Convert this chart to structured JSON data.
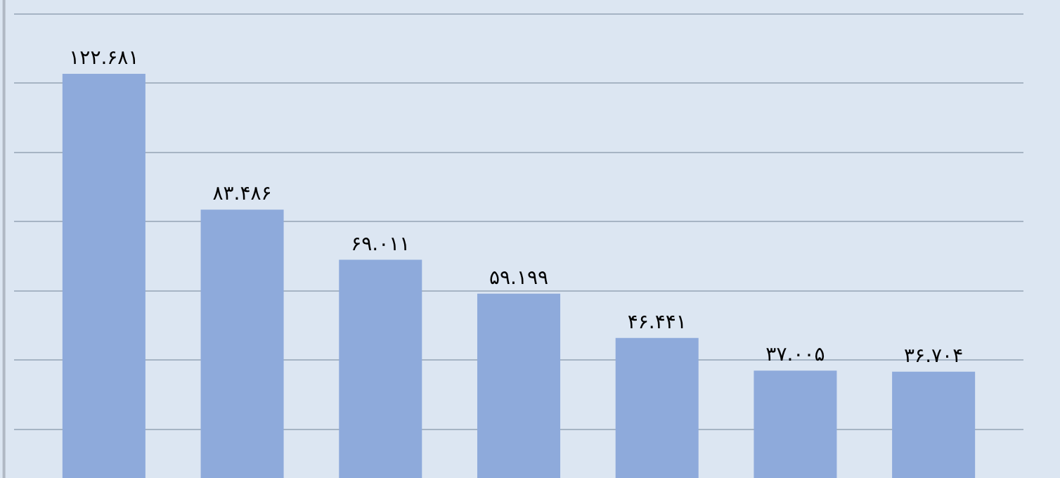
{
  "chart_data": {
    "type": "bar",
    "categories": [
      null,
      null,
      null,
      null,
      null,
      null,
      null
    ],
    "values": [
      122.681,
      83.486,
      69.011,
      59.199,
      46.441,
      37.005,
      36.704
    ],
    "value_labels": [
      "۱۲۲.۶۸۱",
      "۸۳.۴۸۶",
      "۶۹.۰۱۱",
      "۵۹.۱۹۹",
      "۴۶.۴۴۱",
      "۳۷.۰۰۵",
      "۳۶.۷۰۴"
    ],
    "color": "#8eaadb",
    "ylim": [
      6,
      144
    ],
    "yticks": [
      {
        "value": 20,
        "label": null
      },
      {
        "value": 40,
        "label": null
      },
      {
        "value": 60,
        "label": null
      },
      {
        "value": 80,
        "label": null
      },
      {
        "value": 100,
        "label": null
      },
      {
        "value": 120,
        "label": null
      },
      {
        "value": 140,
        "label": null
      }
    ],
    "grid": "y"
  }
}
